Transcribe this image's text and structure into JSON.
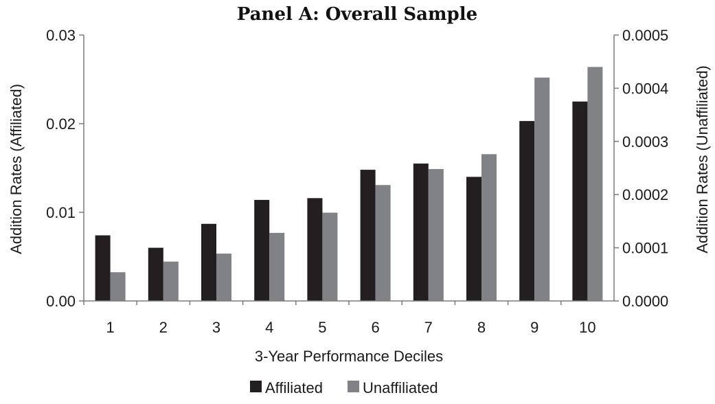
{
  "chart_data": {
    "type": "bar",
    "title": "Panel A: Overall Sample",
    "xlabel": "3-Year Performance Deciles",
    "ylabel_left": "Addition Rates (Affiliated)",
    "ylabel_right": "Addition Rates (Unaffiliated)",
    "categories": [
      "1",
      "2",
      "3",
      "4",
      "5",
      "6",
      "7",
      "8",
      "9",
      "10"
    ],
    "ylim_left": [
      0,
      0.03
    ],
    "ylim_right": [
      0,
      0.0005
    ],
    "yticks_left": [
      "0.00",
      "0.01",
      "0.02",
      "0.03"
    ],
    "yticks_right": [
      "0.0000",
      "0.0001",
      "0.0002",
      "0.0003",
      "0.0004",
      "0.0005"
    ],
    "grid": false,
    "legend_position": "bottom",
    "series": [
      {
        "name": "Affiliated",
        "axis": "left",
        "color": "#231f20",
        "values": [
          0.0074,
          0.006,
          0.0087,
          0.0114,
          0.0116,
          0.0148,
          0.0155,
          0.014,
          0.0203,
          0.0225
        ]
      },
      {
        "name": "Unaffiliated",
        "axis": "right",
        "color": "#808285",
        "values": [
          5.4e-05,
          7.4e-05,
          8.9e-05,
          0.000128,
          0.000166,
          0.000218,
          0.000248,
          0.000276,
          0.00042,
          0.00044
        ]
      }
    ]
  }
}
